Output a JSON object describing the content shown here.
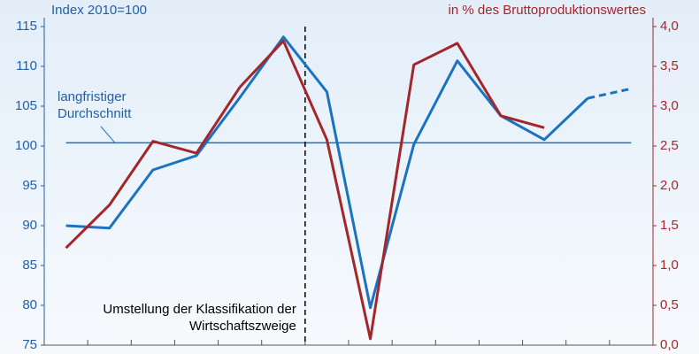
{
  "chart_data": {
    "type": "line",
    "y_axis_label": "Index 2010=100",
    "y2_axis_label": "in % des Bruttoproduktionswertes",
    "categories": [
      null,
      null,
      null,
      null,
      null,
      null,
      null,
      null,
      null,
      null,
      null,
      null,
      null,
      null
    ],
    "series": [
      {
        "color": "#1a73c1",
        "axis": "y",
        "dash_start": 12,
        "values": [
          90.0,
          89.7,
          97.0,
          98.8,
          106.1,
          113.7,
          106.8,
          79.7,
          100.2,
          110.7,
          103.8,
          100.8,
          106.0,
          107.2
        ]
      },
      {
        "color": "#a3262a",
        "axis": "y2",
        "values": [
          1.22,
          1.76,
          2.56,
          2.41,
          3.24,
          3.82,
          2.58,
          0.08,
          3.52,
          3.79,
          2.88,
          2.73,
          null,
          null
        ]
      }
    ],
    "reference_line": {
      "value": 100.4,
      "label_lines": [
        "langfristiger",
        "Durchschnitt"
      ]
    },
    "break_after_index": 5,
    "break_label_lines": [
      "Umstellung  der Klassifikation der",
      "Wirtschaftszweige"
    ],
    "ylim": [
      75,
      115
    ],
    "yticks": [
      75,
      80,
      85,
      90,
      95,
      100,
      105,
      110,
      115
    ],
    "y2lim": [
      0,
      4
    ],
    "y2ticks": [
      {
        "value": 0,
        "label": "0,0"
      },
      {
        "value": 0.5,
        "label": "0,5"
      },
      {
        "value": 1,
        "label": "1,0"
      },
      {
        "value": 1.5,
        "label": "1,5"
      },
      {
        "value": 2,
        "label": "2,0"
      },
      {
        "value": 2.5,
        "label": "2,5"
      },
      {
        "value": 3,
        "label": "3,0"
      },
      {
        "value": 3.5,
        "label": "3,5"
      },
      {
        "value": 4,
        "label": "4,0"
      }
    ]
  }
}
